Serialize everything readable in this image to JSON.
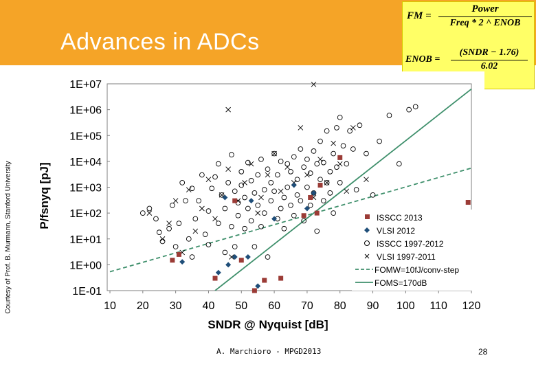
{
  "slide": {
    "title": "Advances in ADCs",
    "credit": "Courtesy of Prof. B. Murmann, Stanford University",
    "footer": "A. Marchioro - MPGD2013",
    "page_number": "28",
    "header_color": "#f5a427"
  },
  "formulas": {
    "fm_lhs": "FM =",
    "fm_num": "Power",
    "fm_den": "Freq * 2 ^ ENOB",
    "enob_lhs": "ENOB =",
    "enob_num": "(SNDR − 1.76)",
    "enob_den": "6.02",
    "box_color": "#ffff66"
  },
  "chart_data": {
    "type": "scatter",
    "xlabel": "SNDR @ Nyquist [dB]",
    "ylabel": "P/fsnyq [pJ]",
    "xlim": [
      10,
      120
    ],
    "ylim_log10": [
      -1,
      7
    ],
    "x_ticks": [
      "10",
      "20",
      "30",
      "40",
      "50",
      "60",
      "70",
      "80",
      "90",
      "100",
      "110",
      "120"
    ],
    "y_ticks": [
      "1E-01",
      "1E+00",
      "1E+01",
      "1E+02",
      "1E+03",
      "1E+04",
      "1E+05",
      "1E+06",
      "1E+07"
    ],
    "legend_position": "bottom-right",
    "series": [
      {
        "name": "ISSCC 2013",
        "marker": "square",
        "color": "#9b3b36",
        "points": [
          [
            29,
            1.5
          ],
          [
            31,
            2.5
          ],
          [
            48,
            300
          ],
          [
            54,
            0.1
          ],
          [
            42,
            0.3
          ],
          [
            50,
            1.5
          ],
          [
            57,
            0.25
          ],
          [
            62,
            0.3
          ],
          [
            69,
            80
          ],
          [
            71,
            400
          ],
          [
            74,
            1200
          ],
          [
            73,
            100
          ],
          [
            80,
            14000
          ],
          [
            119,
            260
          ]
        ]
      },
      {
        "name": "VLSI 2012",
        "marker": "diamond",
        "color": "#1f4e79",
        "points": [
          [
            32,
            1.3
          ],
          [
            43,
            0.5
          ],
          [
            46,
            1
          ],
          [
            48,
            2
          ],
          [
            52,
            2
          ],
          [
            55,
            0.15
          ],
          [
            60,
            60
          ],
          [
            66,
            1200
          ],
          [
            70,
            150
          ],
          [
            72,
            600
          ],
          [
            45,
            400
          ],
          [
            53,
            300
          ]
        ]
      },
      {
        "name": "ISSCC 1997-2012",
        "marker": "circle",
        "color": "#000000",
        "points": [
          [
            20,
            100
          ],
          [
            22,
            150
          ],
          [
            24,
            60
          ],
          [
            25,
            18
          ],
          [
            26,
            8
          ],
          [
            28,
            25
          ],
          [
            29,
            200
          ],
          [
            30,
            5
          ],
          [
            31,
            40
          ],
          [
            32,
            1500
          ],
          [
            33,
            300
          ],
          [
            34,
            10
          ],
          [
            35,
            2
          ],
          [
            35,
            900
          ],
          [
            36,
            60
          ],
          [
            37,
            300
          ],
          [
            38,
            3000
          ],
          [
            39,
            15
          ],
          [
            40,
            120
          ],
          [
            40,
            6
          ],
          [
            41,
            900
          ],
          [
            42,
            2500
          ],
          [
            43,
            40
          ],
          [
            43,
            8000
          ],
          [
            44,
            500
          ],
          [
            45,
            3
          ],
          [
            45,
            150
          ],
          [
            46,
            1500
          ],
          [
            47,
            30
          ],
          [
            47,
            18000
          ],
          [
            48,
            700
          ],
          [
            48,
            5
          ],
          [
            49,
            250
          ],
          [
            49,
            80
          ],
          [
            50,
            4000
          ],
          [
            50,
            1200
          ],
          [
            51,
            25
          ],
          [
            51,
            400
          ],
          [
            52,
            9000
          ],
          [
            52,
            150
          ],
          [
            53,
            1800
          ],
          [
            53,
            50
          ],
          [
            54,
            600
          ],
          [
            54,
            5
          ],
          [
            55,
            3000
          ],
          [
            55,
            200
          ],
          [
            56,
            12000
          ],
          [
            56,
            30
          ],
          [
            57,
            800
          ],
          [
            57,
            100
          ],
          [
            58,
            5000
          ],
          [
            58,
            2
          ],
          [
            59,
            1500
          ],
          [
            59,
            300
          ],
          [
            60,
            20000
          ],
          [
            60,
            700
          ],
          [
            61,
            60
          ],
          [
            61,
            3000
          ],
          [
            62,
            150
          ],
          [
            62,
            10000
          ],
          [
            63,
            400
          ],
          [
            63,
            25
          ],
          [
            64,
            8000
          ],
          [
            64,
            1000
          ],
          [
            65,
            200
          ],
          [
            65,
            4000
          ],
          [
            66,
            15000
          ],
          [
            66,
            80
          ],
          [
            67,
            500
          ],
          [
            67,
            2000
          ],
          [
            68,
            30000
          ],
          [
            68,
            300
          ],
          [
            69,
            6000
          ],
          [
            69,
            50
          ],
          [
            70,
            1000
          ],
          [
            70,
            12000
          ],
          [
            71,
            200
          ],
          [
            71,
            3500
          ],
          [
            72,
            25000
          ],
          [
            72,
            600
          ],
          [
            73,
            8000
          ],
          [
            73,
            20
          ],
          [
            74,
            2000
          ],
          [
            74,
            60000
          ],
          [
            75,
            300
          ],
          [
            75,
            9000
          ],
          [
            76,
            1500
          ],
          [
            76,
            150000
          ],
          [
            77,
            4000
          ],
          [
            77,
            600
          ],
          [
            78,
            20000
          ],
          [
            78,
            100
          ],
          [
            79,
            6000
          ],
          [
            79,
            200000
          ],
          [
            80,
            1500
          ],
          [
            80,
            500000
          ],
          [
            81,
            40000
          ],
          [
            82,
            8000
          ],
          [
            83,
            150000
          ],
          [
            84,
            30000
          ],
          [
            85,
            800
          ],
          [
            86,
            250000
          ],
          [
            88,
            20000
          ],
          [
            90,
            500
          ],
          [
            92,
            60000
          ],
          [
            95,
            600000
          ],
          [
            98,
            8000
          ],
          [
            101,
            1000000
          ],
          [
            103,
            1300000
          ]
        ]
      },
      {
        "name": "VLSI 1997-2011",
        "marker": "x",
        "color": "#000000",
        "points": [
          [
            22,
            100
          ],
          [
            26,
            10
          ],
          [
            28,
            40
          ],
          [
            30,
            300
          ],
          [
            32,
            3
          ],
          [
            34,
            800
          ],
          [
            36,
            20
          ],
          [
            38,
            150
          ],
          [
            40,
            2000
          ],
          [
            42,
            60
          ],
          [
            44,
            500
          ],
          [
            46,
            5000
          ],
          [
            47,
            2
          ],
          [
            49,
            300
          ],
          [
            51,
            1500
          ],
          [
            53,
            8000
          ],
          [
            55,
            100
          ],
          [
            56,
            400
          ],
          [
            58,
            3000
          ],
          [
            60,
            20000
          ],
          [
            62,
            700
          ],
          [
            64,
            6000
          ],
          [
            66,
            1500
          ],
          [
            68,
            200000
          ],
          [
            70,
            3000
          ],
          [
            72,
            400
          ],
          [
            74,
            12000
          ],
          [
            76,
            1500
          ],
          [
            78,
            50000
          ],
          [
            80,
            8000
          ],
          [
            82,
            700
          ],
          [
            84,
            200000
          ],
          [
            88,
            2000
          ],
          [
            46,
            1000000
          ],
          [
            72,
            9500000
          ]
        ]
      },
      {
        "name": "FOMW=10fJ/conv-step",
        "type": "line",
        "style": "dashed",
        "color": "#3e8f6b",
        "endpoints": [
          [
            10,
            -0.27
          ],
          [
            120,
            3.74
          ]
        ]
      },
      {
        "name": "FOMS=170dB",
        "type": "line",
        "style": "solid",
        "color": "#3e8f6b",
        "endpoints": [
          [
            42,
            -1
          ],
          [
            120,
            6.8
          ]
        ]
      }
    ]
  }
}
